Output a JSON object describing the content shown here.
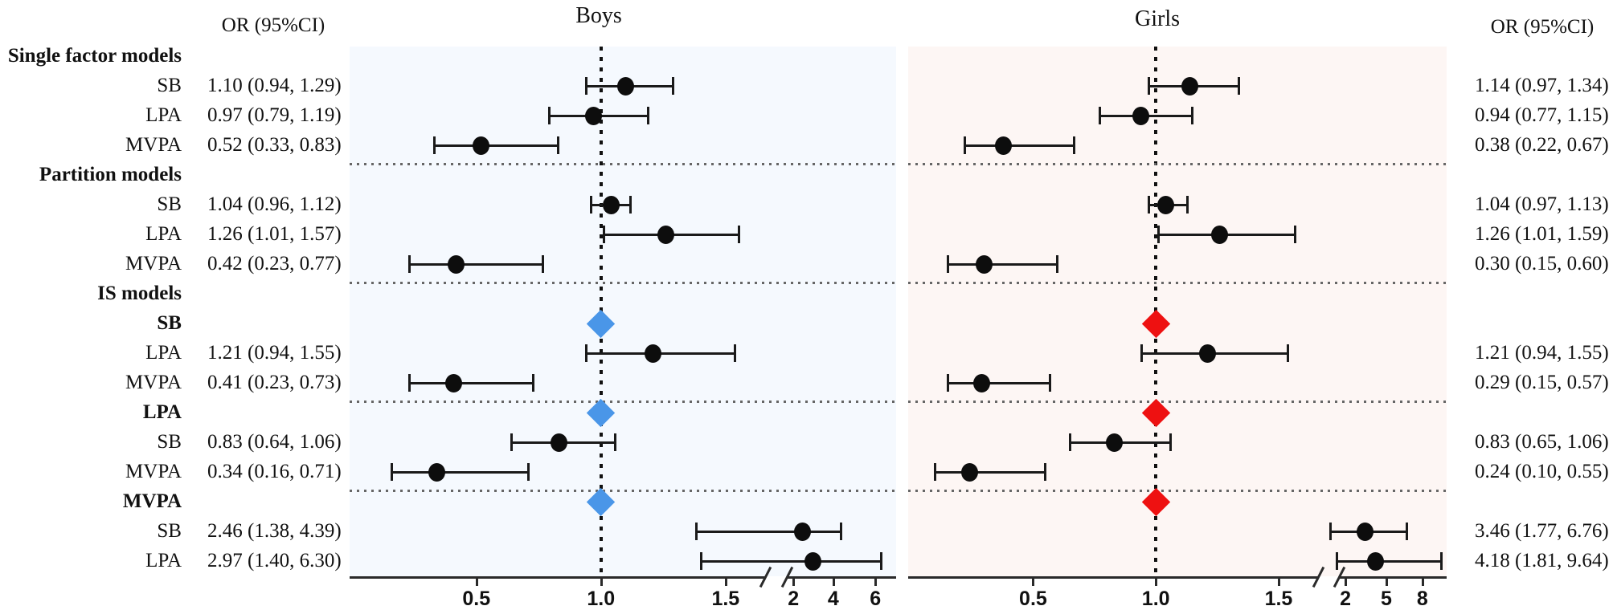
{
  "chart_data": {
    "type": "forest",
    "or_header_left": "OR (95%CI)",
    "or_header_right": "OR (95%CI)",
    "colors": {
      "marker": "#0d0d0d",
      "boys_bg": "#f5f9fe",
      "girls_bg": "#fdf6f4",
      "boys_diamond": "#4a96e8",
      "girls_diamond": "#ee1111",
      "separator": "#666666",
      "refline": "#111111",
      "axis": "#2a2a2a"
    },
    "panels": [
      {
        "id": "boys",
        "title": "Boys",
        "bg": "#f5f9fe",
        "diamond_color": "#4a96e8",
        "ref_value": 1.0,
        "ticks": [
          {
            "v": 0.5,
            "label": "0.5"
          },
          {
            "v": 1.0,
            "label": "1.0"
          },
          {
            "v": 1.5,
            "label": "1.5"
          },
          {
            "v": 2,
            "label": "2"
          },
          {
            "v": 4,
            "label": "4"
          },
          {
            "v": 6,
            "label": "6"
          }
        ],
        "anchors": [
          [
            0.5,
            0.232
          ],
          [
            1.0,
            0.46
          ],
          [
            1.5,
            0.688
          ],
          [
            1.8,
            0.795
          ],
          [
            2,
            0.812
          ],
          [
            4,
            0.885
          ],
          [
            6,
            0.962
          ]
        ],
        "break_fracs": [
          0.762,
          0.802
        ]
      },
      {
        "id": "girls",
        "title": "Girls",
        "bg": "#fdf6f4",
        "diamond_color": "#ee1111",
        "ref_value": 1.0,
        "ticks": [
          {
            "v": 0.5,
            "label": "0.5"
          },
          {
            "v": 1.0,
            "label": "1.0"
          },
          {
            "v": 1.5,
            "label": "1.5"
          },
          {
            "v": 2,
            "label": "2"
          },
          {
            "v": 5,
            "label": "5"
          },
          {
            "v": 8,
            "label": "8"
          }
        ],
        "anchors": [
          [
            0.5,
            0.232
          ],
          [
            1.0,
            0.46
          ],
          [
            1.5,
            0.688
          ],
          [
            1.8,
            0.795
          ],
          [
            2,
            0.812
          ],
          [
            5,
            0.888
          ],
          [
            8,
            0.955
          ]
        ],
        "break_fracs": [
          0.762,
          0.802
        ]
      }
    ],
    "rows": [
      {
        "kind": "section",
        "label": "Single factor models",
        "separator_after": false
      },
      {
        "kind": "item",
        "label": "SB",
        "boys": {
          "or": 1.1,
          "lo": 0.94,
          "hi": 1.29,
          "text": "1.10 (0.94, 1.29)"
        },
        "girls": {
          "or": 1.14,
          "lo": 0.97,
          "hi": 1.34,
          "text": "1.14 (0.97, 1.34)"
        },
        "separator_after": false
      },
      {
        "kind": "item",
        "label": "LPA",
        "boys": {
          "or": 0.97,
          "lo": 0.79,
          "hi": 1.19,
          "text": "0.97 (0.79, 1.19)"
        },
        "girls": {
          "or": 0.94,
          "lo": 0.77,
          "hi": 1.15,
          "text": "0.94 (0.77, 1.15)"
        },
        "separator_after": false
      },
      {
        "kind": "item",
        "label": "MVPA",
        "boys": {
          "or": 0.52,
          "lo": 0.33,
          "hi": 0.83,
          "text": "0.52 (0.33, 0.83)"
        },
        "girls": {
          "or": 0.38,
          "lo": 0.22,
          "hi": 0.67,
          "text": "0.38 (0.22, 0.67)"
        },
        "separator_after": true
      },
      {
        "kind": "section",
        "label": "Partition models",
        "separator_after": false
      },
      {
        "kind": "item",
        "label": "SB",
        "boys": {
          "or": 1.04,
          "lo": 0.96,
          "hi": 1.12,
          "text": "1.04 (0.96, 1.12)"
        },
        "girls": {
          "or": 1.04,
          "lo": 0.97,
          "hi": 1.13,
          "text": "1.04 (0.97, 1.13)"
        },
        "separator_after": false
      },
      {
        "kind": "item",
        "label": "LPA",
        "boys": {
          "or": 1.26,
          "lo": 1.01,
          "hi": 1.57,
          "text": "1.26 (1.01, 1.57)"
        },
        "girls": {
          "or": 1.26,
          "lo": 1.01,
          "hi": 1.59,
          "text": "1.26 (1.01, 1.59)"
        },
        "separator_after": false
      },
      {
        "kind": "item",
        "label": "MVPA",
        "boys": {
          "or": 0.42,
          "lo": 0.23,
          "hi": 0.77,
          "text": "0.42 (0.23, 0.77)"
        },
        "girls": {
          "or": 0.3,
          "lo": 0.15,
          "hi": 0.6,
          "text": "0.30 (0.15, 0.60)"
        },
        "separator_after": true
      },
      {
        "kind": "section",
        "label": "IS models",
        "separator_after": false
      },
      {
        "kind": "ref",
        "label": "SB",
        "ref_or": 1.0,
        "separator_after": false
      },
      {
        "kind": "item",
        "label": "LPA",
        "boys": {
          "or": 1.21,
          "lo": 0.94,
          "hi": 1.55,
          "text": "1.21 (0.94, 1.55)"
        },
        "girls": {
          "or": 1.21,
          "lo": 0.94,
          "hi": 1.55,
          "text": "1.21 (0.94, 1.55)"
        },
        "separator_after": false
      },
      {
        "kind": "item",
        "label": "MVPA",
        "boys": {
          "or": 0.41,
          "lo": 0.23,
          "hi": 0.73,
          "text": "0.41 (0.23, 0.73)"
        },
        "girls": {
          "or": 0.29,
          "lo": 0.15,
          "hi": 0.57,
          "text": "0.29 (0.15, 0.57)"
        },
        "separator_after": true
      },
      {
        "kind": "ref",
        "label": "LPA",
        "ref_or": 1.0,
        "separator_after": false
      },
      {
        "kind": "item",
        "label": "SB",
        "boys": {
          "or": 0.83,
          "lo": 0.64,
          "hi": 1.06,
          "text": "0.83 (0.64, 1.06)"
        },
        "girls": {
          "or": 0.83,
          "lo": 0.65,
          "hi": 1.06,
          "text": "0.83 (0.65, 1.06)"
        },
        "separator_after": false
      },
      {
        "kind": "item",
        "label": "MVPA",
        "boys": {
          "or": 0.34,
          "lo": 0.16,
          "hi": 0.71,
          "text": "0.34 (0.16, 0.71)"
        },
        "girls": {
          "or": 0.24,
          "lo": 0.1,
          "hi": 0.55,
          "text": "0.24 (0.10, 0.55)"
        },
        "separator_after": true
      },
      {
        "kind": "ref",
        "label": "MVPA",
        "ref_or": 1.0,
        "separator_after": false
      },
      {
        "kind": "item",
        "label": "SB",
        "boys": {
          "or": 2.46,
          "lo": 1.38,
          "hi": 4.39,
          "text": "2.46 (1.38, 4.39)"
        },
        "girls": {
          "or": 3.46,
          "lo": 1.77,
          "hi": 6.76,
          "text": "3.46 (1.77, 6.76)"
        },
        "separator_after": false
      },
      {
        "kind": "item",
        "label": "LPA",
        "boys": {
          "or": 2.97,
          "lo": 1.4,
          "hi": 6.3,
          "text": "2.97 (1.40, 6.30)"
        },
        "girls": {
          "or": 4.18,
          "lo": 1.81,
          "hi": 9.64,
          "text": "4.18 (1.81, 9.64)"
        },
        "separator_after": false
      }
    ]
  }
}
